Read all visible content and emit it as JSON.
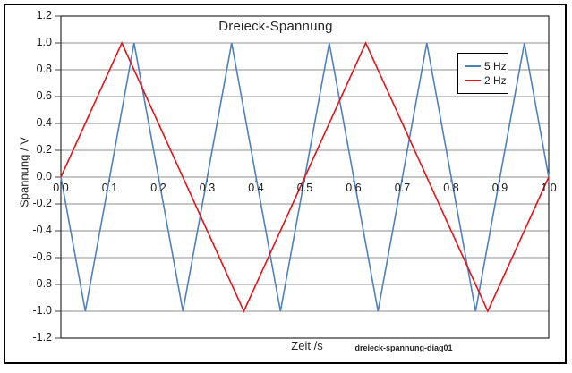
{
  "caption": "dreieck-spannung-diag01",
  "colors": {
    "background": "#ffffff",
    "outer_border": "#000000",
    "plot_border": "#000000",
    "grid": "#8e8e8e",
    "tick": "#404040",
    "text": "#262626",
    "series_blue": "#4f81bd",
    "series_red": "#e0151a"
  },
  "chart_data": {
    "type": "line",
    "title": "Dreieck-Spannung",
    "xlabel": "Zeit /s",
    "ylabel": "Spannung / V",
    "xlim": [
      0.0,
      1.0
    ],
    "ylim": [
      -1.2,
      1.2
    ],
    "x_tick_labels": [
      "0.0",
      "0.1",
      "0.2",
      "0.3",
      "0.4",
      "0.5",
      "0.6",
      "0.7",
      "0.8",
      "0.9",
      "1.0"
    ],
    "y_tick_labels": [
      "1.2",
      "1.0",
      "0.8",
      "0.6",
      "0.4",
      "0.2",
      "0.0",
      "-0.2",
      "-0.4",
      "-0.6",
      "-0.8",
      "-1.0",
      "-1.2"
    ],
    "grid": "horizontal-only",
    "legend_position": "top-right-inside",
    "series": [
      {
        "name": "5 Hz",
        "color": "#4f81bd",
        "waveform": "triangle",
        "amplitude_v": 1.0,
        "points": [
          [
            0.0,
            0.0
          ],
          [
            0.05,
            -1.0
          ],
          [
            0.15,
            1.0
          ],
          [
            0.25,
            -1.0
          ],
          [
            0.35,
            1.0
          ],
          [
            0.45,
            -1.0
          ],
          [
            0.55,
            1.0
          ],
          [
            0.65,
            -1.0
          ],
          [
            0.75,
            1.0
          ],
          [
            0.85,
            -1.0
          ],
          [
            0.95,
            1.0
          ],
          [
            1.0,
            0.0
          ]
        ]
      },
      {
        "name": "2 Hz",
        "color": "#e0151a",
        "waveform": "triangle",
        "amplitude_v": 1.0,
        "points": [
          [
            0.0,
            0.0
          ],
          [
            0.125,
            1.0
          ],
          [
            0.375,
            -1.0
          ],
          [
            0.625,
            1.0
          ],
          [
            0.875,
            -1.0
          ],
          [
            1.0,
            0.0
          ]
        ]
      }
    ]
  }
}
